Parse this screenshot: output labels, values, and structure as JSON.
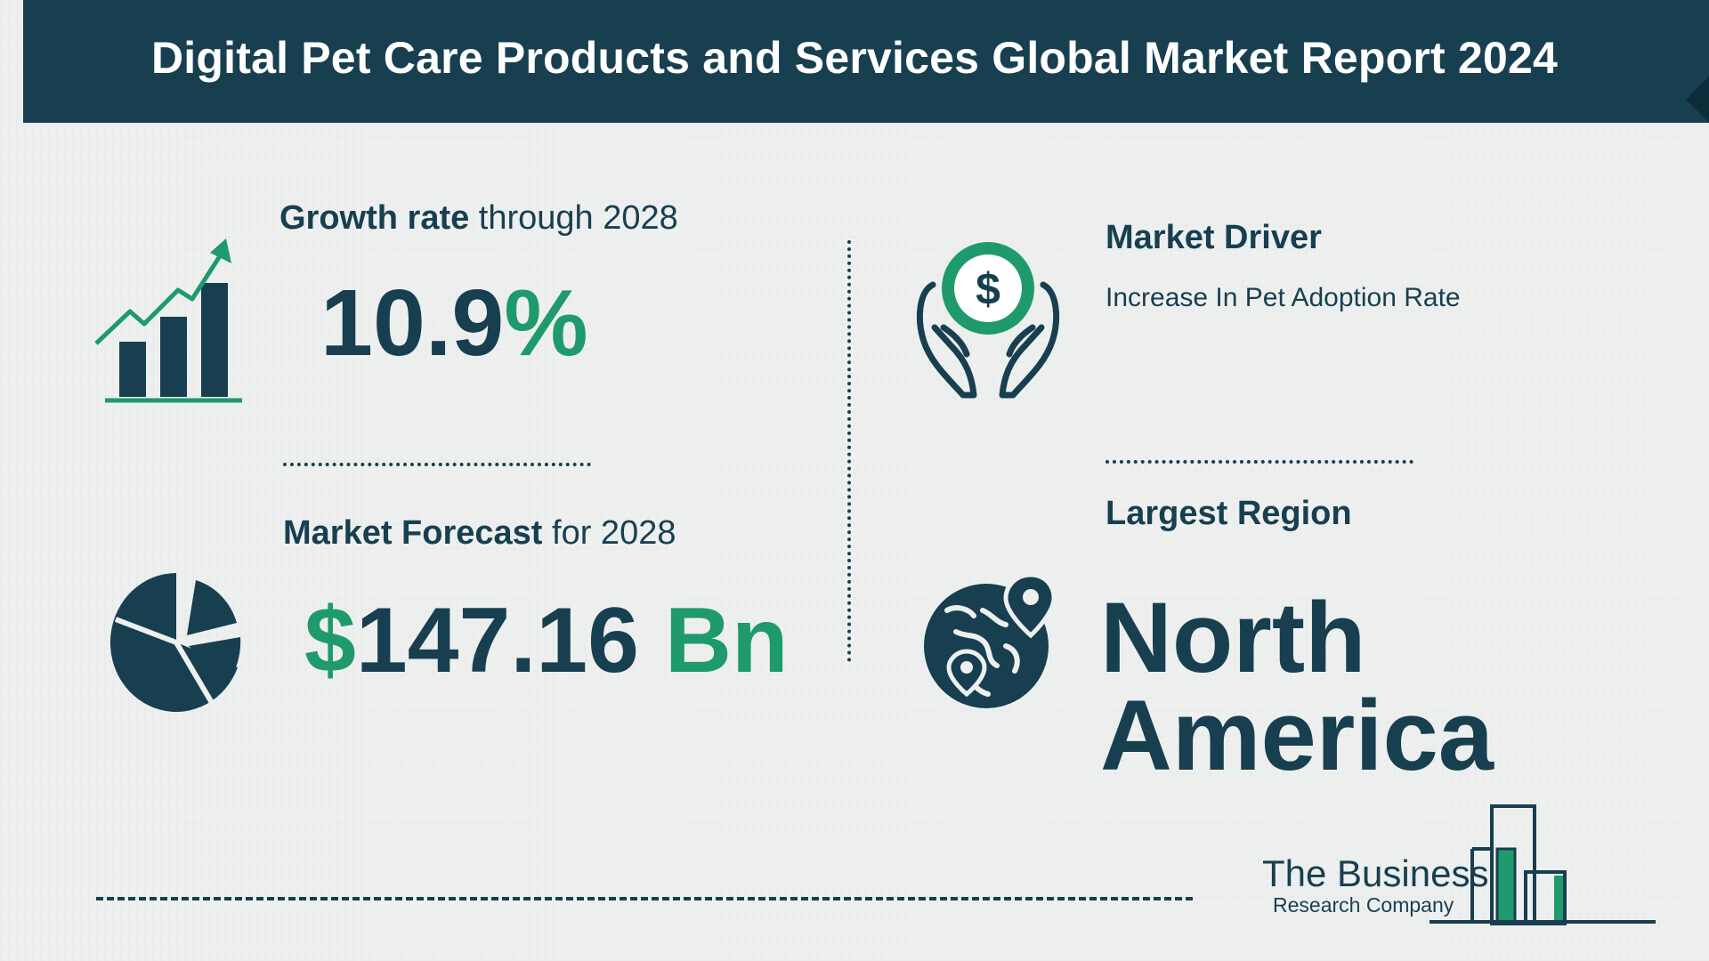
{
  "header": {
    "title": "Digital Pet Care Products and Services Global Market Report 2024"
  },
  "growth": {
    "label_bold": "Growth rate",
    "label_rest": " through 2028",
    "value_number": "10.9",
    "value_unit": "%"
  },
  "forecast": {
    "label_bold": "Market Forecast",
    "label_rest": " for 2028",
    "currency": "$",
    "amount": "147.16",
    "unit": " Bn"
  },
  "driver": {
    "heading": "Market Driver",
    "text": "Increase In Pet Adoption Rate"
  },
  "region": {
    "heading": "Largest Region",
    "line1": "North",
    "line2": "America"
  },
  "logo": {
    "line1": "The Business",
    "line2": "Research Company"
  },
  "icons": [
    "growth-chart-icon",
    "pie-chart-icon",
    "money-hands-icon",
    "globe-pins-icon",
    "company-logo-bars-icon"
  ],
  "colors": {
    "navy": "#173f50",
    "green": "#1e9a6d",
    "background": "#eef0ef"
  }
}
